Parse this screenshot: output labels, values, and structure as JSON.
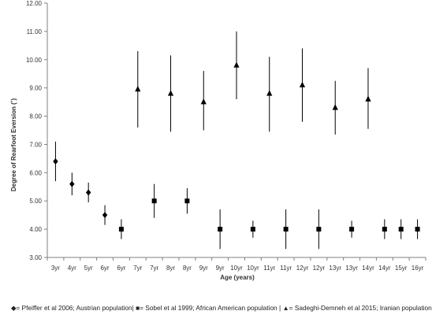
{
  "chart_data": {
    "type": "scatter",
    "title": "",
    "xlabel": "Age (years)",
    "ylabel": "Degree of Rearfoot Eversion (˚)",
    "ylim": [
      3.0,
      12.0
    ],
    "yticks": [
      "3.00",
      "4.00",
      "5.00",
      "6.00",
      "7.00",
      "8.00",
      "9.00",
      "10.00",
      "11.00",
      "12.00"
    ],
    "categories": [
      "3yr",
      "4yr",
      "5yr",
      "6yr",
      "6yr",
      "7yr",
      "7yr",
      "8yr",
      "8yr",
      "9yr",
      "9yr",
      "10yr",
      "10yr",
      "11yr",
      "11yr",
      "12yr",
      "12yr",
      "13yr",
      "13yr",
      "14yr",
      "14yr",
      "15yr",
      "16yr"
    ],
    "grid": false,
    "series": [
      {
        "name": "Pfeiffer et al 2006; Austrian population",
        "marker": "diamond",
        "points": [
          {
            "category_index": 0,
            "value": 6.4,
            "low": 5.7,
            "high": 7.1
          },
          {
            "category_index": 1,
            "value": 5.6,
            "low": 5.2,
            "high": 6.0
          },
          {
            "category_index": 2,
            "value": 5.3,
            "low": 4.95,
            "high": 5.65
          },
          {
            "category_index": 3,
            "value": 4.5,
            "low": 4.15,
            "high": 4.85
          }
        ]
      },
      {
        "name": "Sobel et al 1999; African American population",
        "marker": "square",
        "points": [
          {
            "category_index": 4,
            "value": 4.0,
            "low": 3.65,
            "high": 4.35
          },
          {
            "category_index": 6,
            "value": 5.0,
            "low": 4.4,
            "high": 5.6
          },
          {
            "category_index": 8,
            "value": 5.0,
            "low": 4.55,
            "high": 5.45
          },
          {
            "category_index": 10,
            "value": 4.0,
            "low": 3.3,
            "high": 4.7
          },
          {
            "category_index": 12,
            "value": 4.0,
            "low": 3.7,
            "high": 4.3
          },
          {
            "category_index": 14,
            "value": 4.0,
            "low": 3.3,
            "high": 4.7
          },
          {
            "category_index": 16,
            "value": 4.0,
            "low": 3.3,
            "high": 4.7
          },
          {
            "category_index": 18,
            "value": 4.0,
            "low": 3.7,
            "high": 4.3
          },
          {
            "category_index": 20,
            "value": 4.0,
            "low": 3.65,
            "high": 4.35
          },
          {
            "category_index": 21,
            "value": 4.0,
            "low": 3.65,
            "high": 4.35
          },
          {
            "category_index": 22,
            "value": 4.0,
            "low": 3.65,
            "high": 4.35
          }
        ]
      },
      {
        "name": "Sadeghi-Demneh et al 2015; Iranian population",
        "marker": "triangle",
        "points": [
          {
            "category_index": 5,
            "value": 8.95,
            "low": 7.6,
            "high": 10.3
          },
          {
            "category_index": 7,
            "value": 8.8,
            "low": 7.45,
            "high": 10.15
          },
          {
            "category_index": 9,
            "value": 8.5,
            "low": 7.5,
            "high": 9.6
          },
          {
            "category_index": 11,
            "value": 9.8,
            "low": 8.6,
            "high": 11.0
          },
          {
            "category_index": 13,
            "value": 8.8,
            "low": 7.45,
            "high": 10.1
          },
          {
            "category_index": 15,
            "value": 9.1,
            "low": 7.8,
            "high": 10.4
          },
          {
            "category_index": 17,
            "value": 8.3,
            "low": 7.35,
            "high": 9.25
          },
          {
            "category_index": 19,
            "value": 8.6,
            "low": 7.55,
            "high": 9.7
          }
        ]
      }
    ]
  },
  "legend": {
    "diamond_symbol": "◆",
    "part1": "= Pfeiffer et al 2006; Austrian population| ",
    "square_symbol": "■",
    "part2": "= Sobel et al 1999; African American population | ",
    "triangle_symbol": "▲",
    "part3": "= Sadeghi-Demneh et al 2015; Iranian population"
  },
  "colors": {
    "marker": "#000000",
    "axis": "#808080",
    "text": "#333333"
  }
}
